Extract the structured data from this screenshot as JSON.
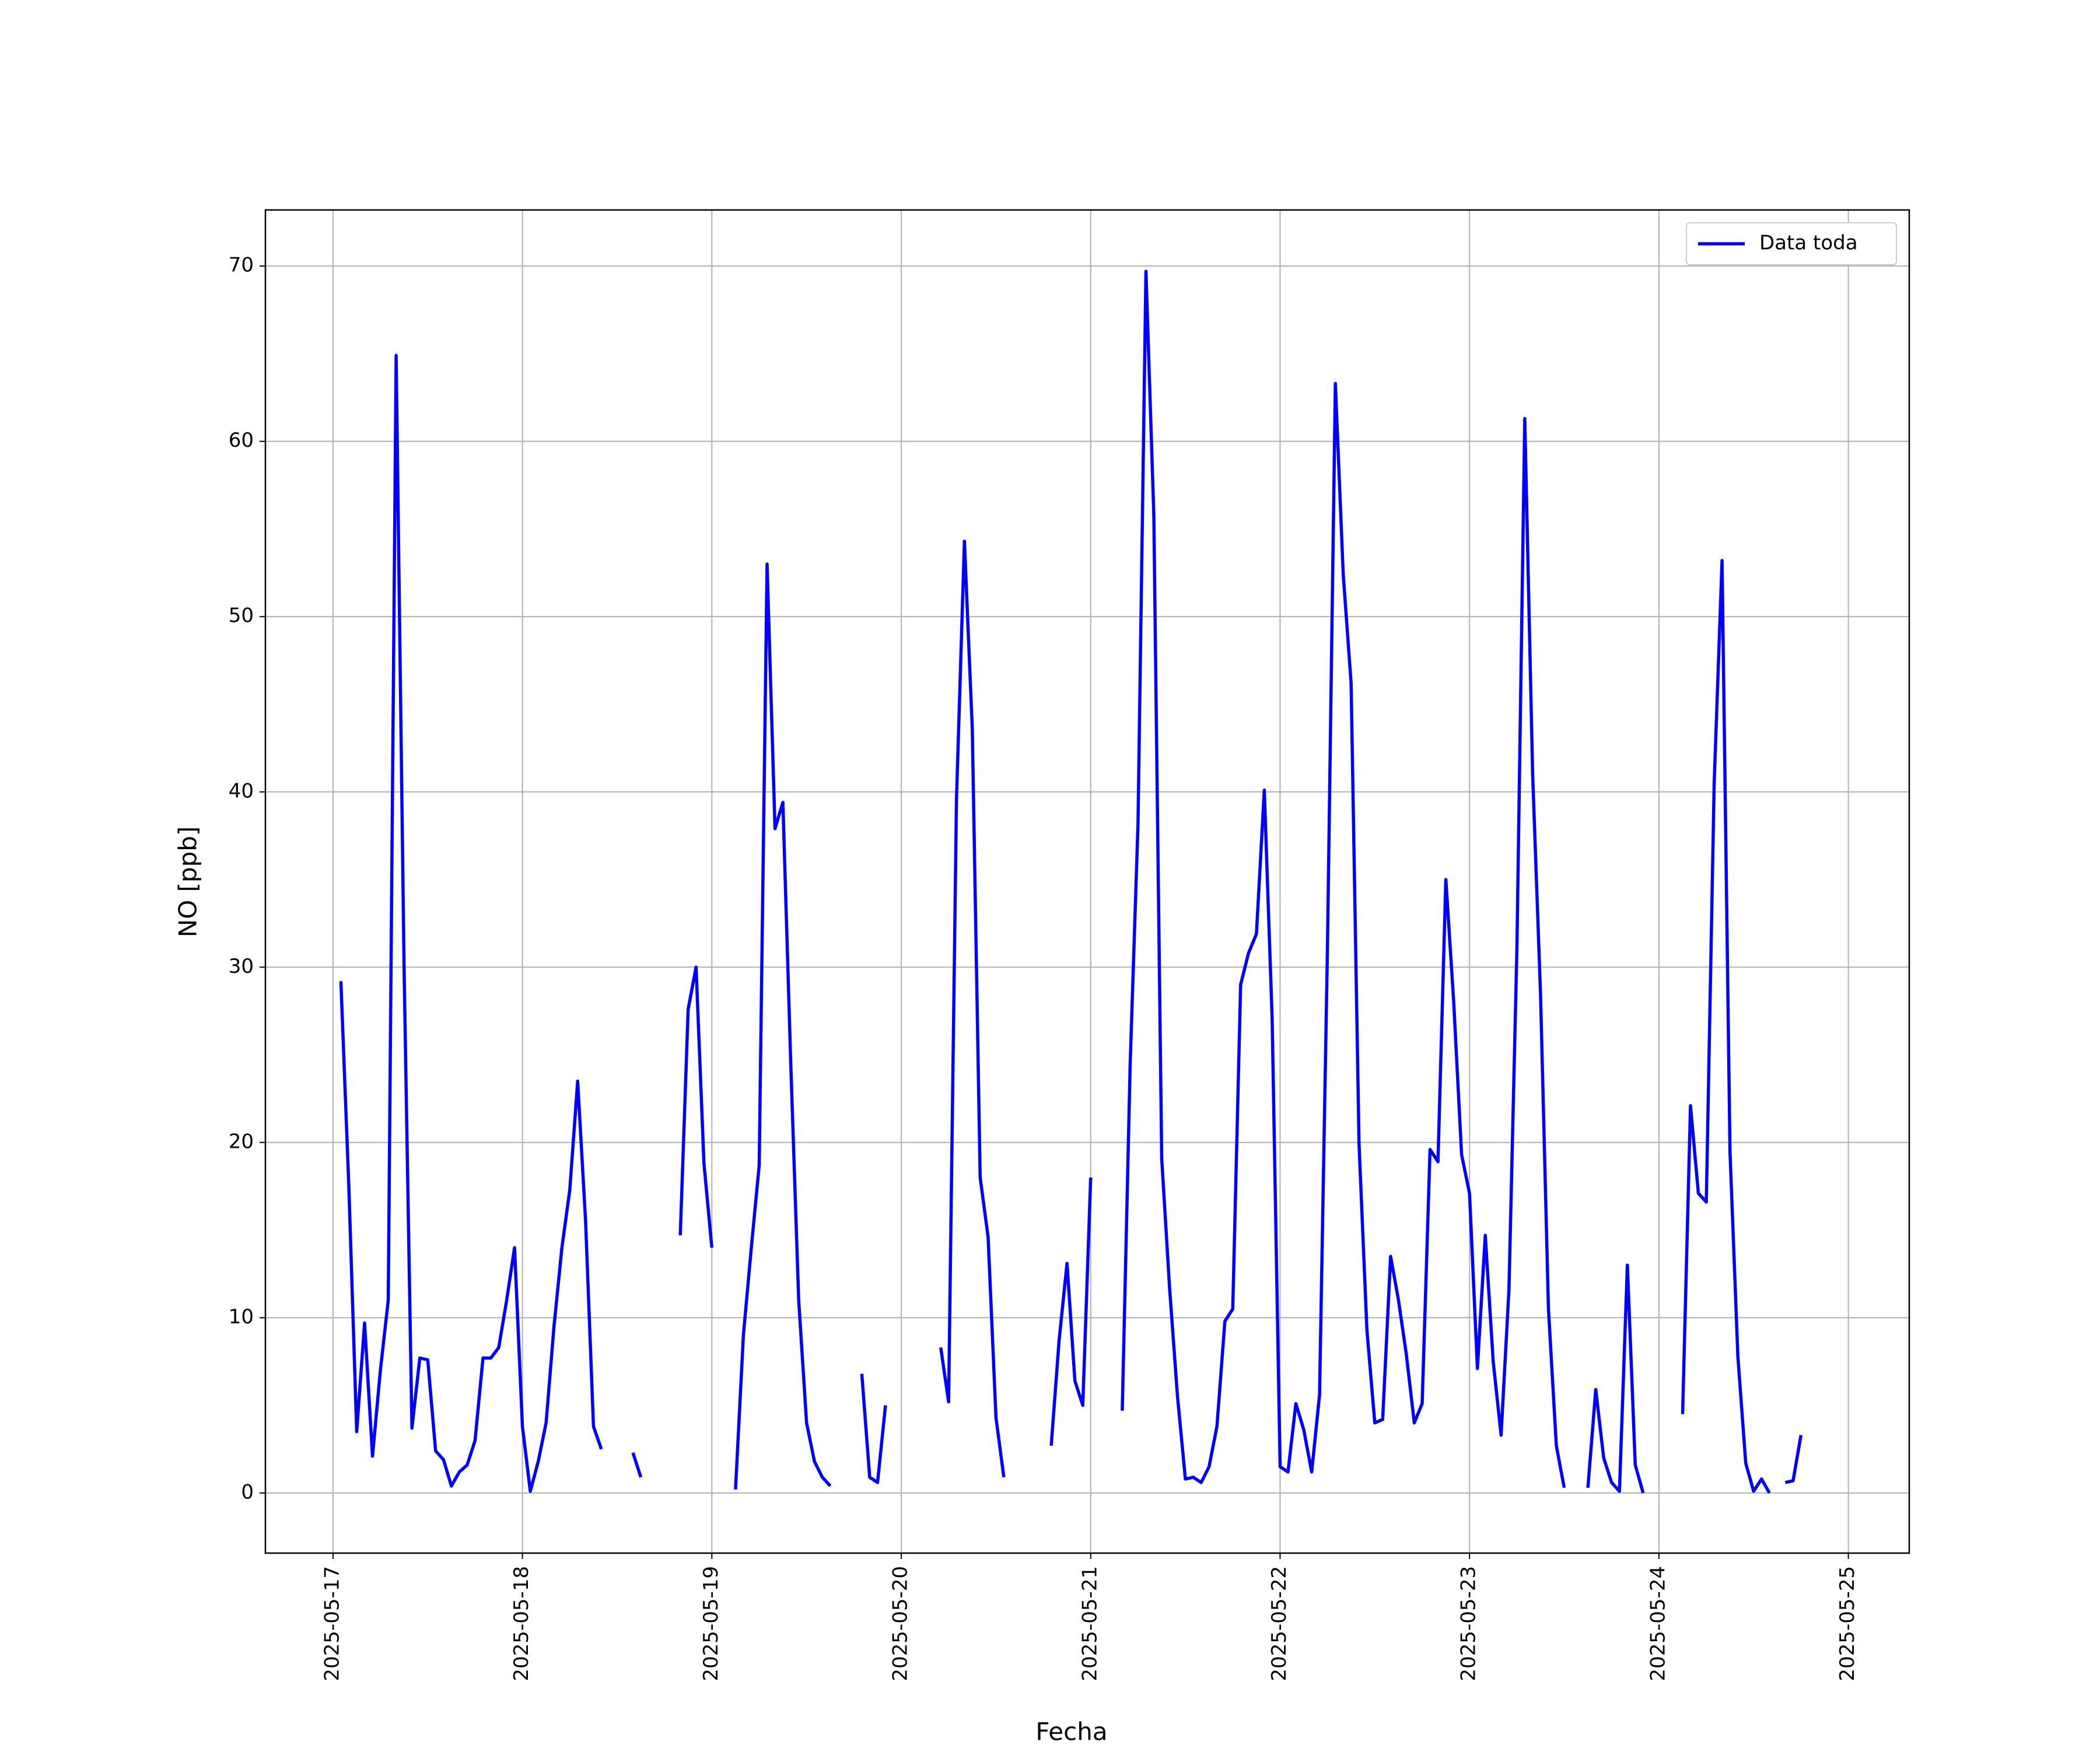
{
  "chart_data": {
    "type": "line",
    "xlabel": "Fecha",
    "ylabel": "NO [ppb]",
    "x": [
      "2025-05-17 01:00",
      "2025-05-17 02:00",
      "2025-05-17 03:00",
      "2025-05-17 04:00",
      "2025-05-17 05:00",
      "2025-05-17 06:00",
      "2025-05-17 07:00",
      "2025-05-17 08:00",
      "2025-05-17 09:00",
      "2025-05-17 10:00",
      "2025-05-17 11:00",
      "2025-05-17 12:00",
      "2025-05-17 13:00",
      "2025-05-17 14:00",
      "2025-05-17 15:00",
      "2025-05-17 16:00",
      "2025-05-17 17:00",
      "2025-05-17 18:00",
      "2025-05-17 19:00",
      "2025-05-17 20:00",
      "2025-05-17 21:00",
      "2025-05-17 22:00",
      "2025-05-17 23:00",
      "2025-05-18 00:00",
      "2025-05-18 01:00",
      "2025-05-18 02:00",
      "2025-05-18 03:00",
      "2025-05-18 04:00",
      "2025-05-18 05:00",
      "2025-05-18 06:00",
      "2025-05-18 07:00",
      "2025-05-18 08:00",
      "2025-05-18 09:00",
      "2025-05-18 10:00",
      "2025-05-18 11:00",
      "2025-05-18 14:00",
      "2025-05-18 15:00",
      "2025-05-18 16:00",
      "2025-05-18 20:00",
      "2025-05-18 21:00",
      "2025-05-18 22:00",
      "2025-05-18 23:00",
      "2025-05-19 00:00",
      "2025-05-19 01:00",
      "2025-05-19 03:00",
      "2025-05-19 04:00",
      "2025-05-19 05:00",
      "2025-05-19 06:00",
      "2025-05-19 07:00",
      "2025-05-19 08:00",
      "2025-05-19 09:00",
      "2025-05-19 10:00",
      "2025-05-19 11:00",
      "2025-05-19 12:00",
      "2025-05-19 13:00",
      "2025-05-19 14:00",
      "2025-05-19 15:00",
      "2025-05-19 16:00",
      "2025-05-19 19:00",
      "2025-05-19 20:00",
      "2025-05-19 21:00",
      "2025-05-19 22:00",
      "2025-05-19 23:00",
      "2025-05-20 05:00",
      "2025-05-20 06:00",
      "2025-05-20 07:00",
      "2025-05-20 08:00",
      "2025-05-20 09:00",
      "2025-05-20 10:00",
      "2025-05-20 11:00",
      "2025-05-20 12:00",
      "2025-05-20 13:00",
      "2025-05-20 14:00",
      "2025-05-20 19:00",
      "2025-05-20 20:00",
      "2025-05-20 21:00",
      "2025-05-20 22:00",
      "2025-05-20 23:00",
      "2025-05-21 00:00",
      "2025-05-21 01:00",
      "2025-05-21 04:00",
      "2025-05-21 05:00",
      "2025-05-21 06:00",
      "2025-05-21 07:00",
      "2025-05-21 08:00",
      "2025-05-21 09:00",
      "2025-05-21 10:00",
      "2025-05-21 11:00",
      "2025-05-21 12:00",
      "2025-05-21 13:00",
      "2025-05-21 14:00",
      "2025-05-21 15:00",
      "2025-05-21 16:00",
      "2025-05-21 17:00",
      "2025-05-21 18:00",
      "2025-05-21 19:00",
      "2025-05-21 20:00",
      "2025-05-21 21:00",
      "2025-05-21 22:00",
      "2025-05-21 23:00",
      "2025-05-22 00:00",
      "2025-05-22 01:00",
      "2025-05-22 02:00",
      "2025-05-22 03:00",
      "2025-05-22 04:00",
      "2025-05-22 05:00",
      "2025-05-22 06:00",
      "2025-05-22 07:00",
      "2025-05-22 08:00",
      "2025-05-22 09:00",
      "2025-05-22 10:00",
      "2025-05-22 11:00",
      "2025-05-22 12:00",
      "2025-05-22 13:00",
      "2025-05-22 14:00",
      "2025-05-22 15:00",
      "2025-05-22 16:00",
      "2025-05-22 17:00",
      "2025-05-22 18:00",
      "2025-05-22 19:00",
      "2025-05-22 20:00",
      "2025-05-22 21:00",
      "2025-05-22 22:00",
      "2025-05-22 23:00",
      "2025-05-23 00:00",
      "2025-05-23 01:00",
      "2025-05-23 02:00",
      "2025-05-23 03:00",
      "2025-05-23 04:00",
      "2025-05-23 05:00",
      "2025-05-23 06:00",
      "2025-05-23 07:00",
      "2025-05-23 08:00",
      "2025-05-23 09:00",
      "2025-05-23 10:00",
      "2025-05-23 11:00",
      "2025-05-23 12:00",
      "2025-05-23 13:00",
      "2025-05-23 15:00",
      "2025-05-23 16:00",
      "2025-05-23 17:00",
      "2025-05-23 18:00",
      "2025-05-23 19:00",
      "2025-05-23 20:00",
      "2025-05-23 21:00",
      "2025-05-23 22:00",
      "2025-05-23 23:00",
      "2025-05-24 03:00",
      "2025-05-24 04:00",
      "2025-05-24 05:00",
      "2025-05-24 06:00",
      "2025-05-24 07:00",
      "2025-05-24 08:00",
      "2025-05-24 09:00",
      "2025-05-24 10:00",
      "2025-05-24 11:00",
      "2025-05-24 12:00",
      "2025-05-24 13:00",
      "2025-05-24 14:00",
      "2025-05-24 15:00",
      "2025-05-24 16:00",
      "2025-05-24 17:00",
      "2025-05-24 18:00"
    ],
    "series": [
      {
        "name": "Data toda",
        "color": "#0000ff",
        "values": [
          29.2,
          17.5,
          3.5,
          9.7,
          2.1,
          7,
          11,
          64.9,
          30,
          3.7,
          7.7,
          7.6,
          2.4,
          1.9,
          0.4,
          1.2,
          1.6,
          3,
          7.7,
          7.7,
          8.3,
          11,
          14,
          3.8,
          0.1,
          1.8,
          4,
          9.5,
          14,
          17.3,
          23.5,
          15.5,
          3.8,
          2.5,
          null,
          2.3,
          0.9,
          null,
          14.7,
          27.6,
          30,
          18.8,
          14,
          null,
          0.2,
          9,
          14,
          18.7,
          53,
          37.9,
          39.4,
          24.5,
          11,
          4,
          1.8,
          0.9,
          0.4,
          null,
          6.8,
          0.9,
          0.6,
          5,
          null,
          8.3,
          5.2,
          39.6,
          54.3,
          43.6,
          18,
          14.6,
          4.3,
          0.9,
          null,
          2.7,
          8.7,
          13.1,
          6.4,
          5,
          18,
          null,
          4.7,
          24.4,
          38.2,
          69.7,
          55.8,
          19.1,
          11.7,
          5.5,
          0.8,
          0.9,
          0.6,
          1.5,
          3.8,
          9.8,
          10.5,
          29,
          30.8,
          31.9,
          40.1,
          27,
          1.5,
          1.2,
          5.1,
          3.6,
          1.2,
          5.6,
          31,
          63.3,
          52.4,
          46.2,
          19.9,
          9.3,
          4,
          4.2,
          13.5,
          11,
          7.9,
          4,
          5.1,
          19.6,
          18.9,
          35,
          28,
          19.3,
          17.1,
          7.1,
          14.7,
          7.5,
          3.3,
          11.6,
          31,
          61.3,
          41,
          28.5,
          10.5,
          2.7,
          0.3,
          null,
          0.3,
          5.9,
          2,
          0.6,
          0.1,
          13,
          1.6,
          0,
          null,
          4.5,
          22.1,
          17.1,
          16.6,
          40.5,
          53.2,
          19.5,
          7.8,
          1.7,
          0.1,
          0.8,
          0,
          null,
          0.6,
          0.7,
          3.3
        ]
      }
    ],
    "xlim": [
      "2025-05-16 15:26",
      "2025-05-25 07:43"
    ],
    "xticks": [
      "2025-05-17",
      "2025-05-18",
      "2025-05-19",
      "2025-05-20",
      "2025-05-21",
      "2025-05-22",
      "2025-05-23",
      "2025-05-24",
      "2025-05-25"
    ],
    "ylim": [
      -3.43,
      73.2
    ],
    "yticks": [
      0,
      10,
      20,
      30,
      40,
      50,
      60,
      70
    ],
    "grid": true,
    "legend": "upper right"
  }
}
